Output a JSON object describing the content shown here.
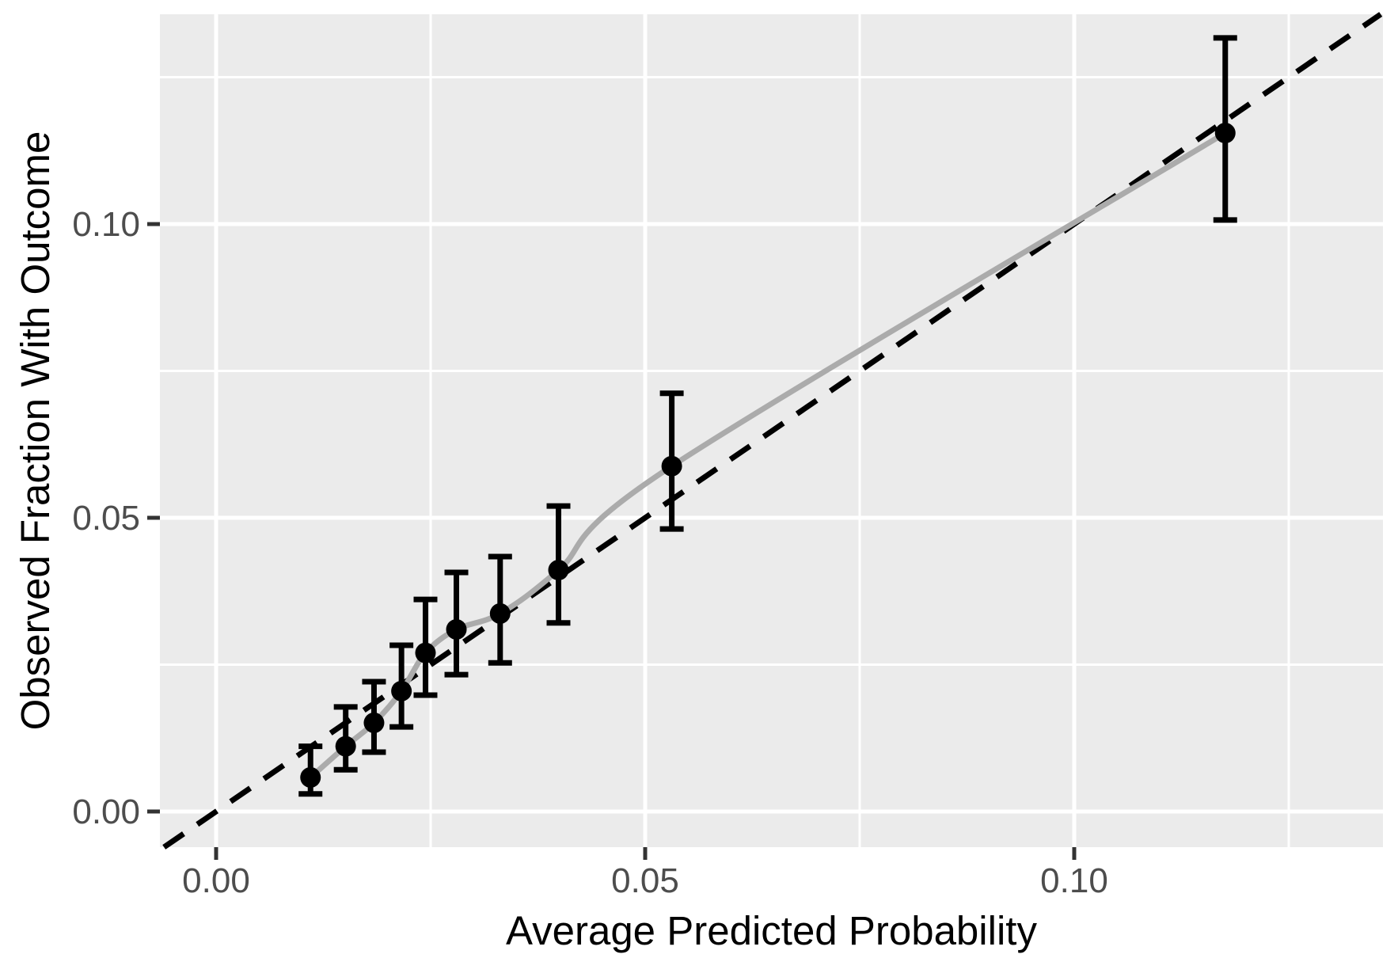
{
  "figure": {
    "background": "#FFFFFF",
    "panel_background": "#EBEBEB",
    "grid_color": "#FFFFFF",
    "axis_text_color": "#4D4D4D",
    "axis_title_color": "#000000",
    "tick_mark_color": "#333333"
  },
  "chart_data": {
    "type": "scatter",
    "title": "",
    "xlabel": "Average Predicted Probability",
    "ylabel": "Observed Fraction With Outcome",
    "xlim": [
      -0.00655,
      0.13598
    ],
    "ylim": [
      -0.00607,
      0.13572
    ],
    "grid": "on",
    "legend": "none",
    "x_major_ticks": [
      0.0,
      0.05,
      0.1
    ],
    "x_tick_labels": [
      "0.00",
      "0.05",
      "0.10"
    ],
    "x_minor_ticks": [
      0.025,
      0.075,
      0.125
    ],
    "y_major_ticks": [
      0.0,
      0.05,
      0.1
    ],
    "y_tick_labels": [
      "0.00",
      "0.05",
      "0.10"
    ],
    "y_minor_ticks": [
      0.025,
      0.075,
      0.125
    ],
    "series": [
      {
        "name": "identity-line",
        "type": "line",
        "style": "dashed",
        "color": "#000000",
        "description": "y = x reference line",
        "points": [
          {
            "x": -0.00607,
            "y": -0.00607
          },
          {
            "x": 0.13572,
            "y": 0.13572
          }
        ]
      },
      {
        "name": "calibration-curve",
        "type": "line",
        "style": "solid",
        "color": "#ABABAB",
        "connects": "calibration-pointrange"
      },
      {
        "name": "calibration-pointrange",
        "type": "pointrange",
        "color": "#000000",
        "points": [
          {
            "x": 0.011,
            "y": 0.0058,
            "ymin": 0.003,
            "ymax": 0.0111
          },
          {
            "x": 0.0151,
            "y": 0.0111,
            "ymin": 0.0071,
            "ymax": 0.0178
          },
          {
            "x": 0.0184,
            "y": 0.0151,
            "ymin": 0.0101,
            "ymax": 0.0221
          },
          {
            "x": 0.0216,
            "y": 0.0205,
            "ymin": 0.0144,
            "ymax": 0.0283
          },
          {
            "x": 0.0244,
            "y": 0.027,
            "ymin": 0.0198,
            "ymax": 0.0361
          },
          {
            "x": 0.028,
            "y": 0.031,
            "ymin": 0.0233,
            "ymax": 0.0407
          },
          {
            "x": 0.0331,
            "y": 0.0337,
            "ymin": 0.0253,
            "ymax": 0.0434
          },
          {
            "x": 0.0399,
            "y": 0.0411,
            "ymin": 0.0321,
            "ymax": 0.052
          },
          {
            "x": 0.0531,
            "y": 0.0588,
            "ymin": 0.0481,
            "ymax": 0.0712
          },
          {
            "x": 0.1176,
            "y": 0.1155,
            "ymin": 0.1007,
            "ymax": 0.1317
          }
        ]
      }
    ]
  }
}
